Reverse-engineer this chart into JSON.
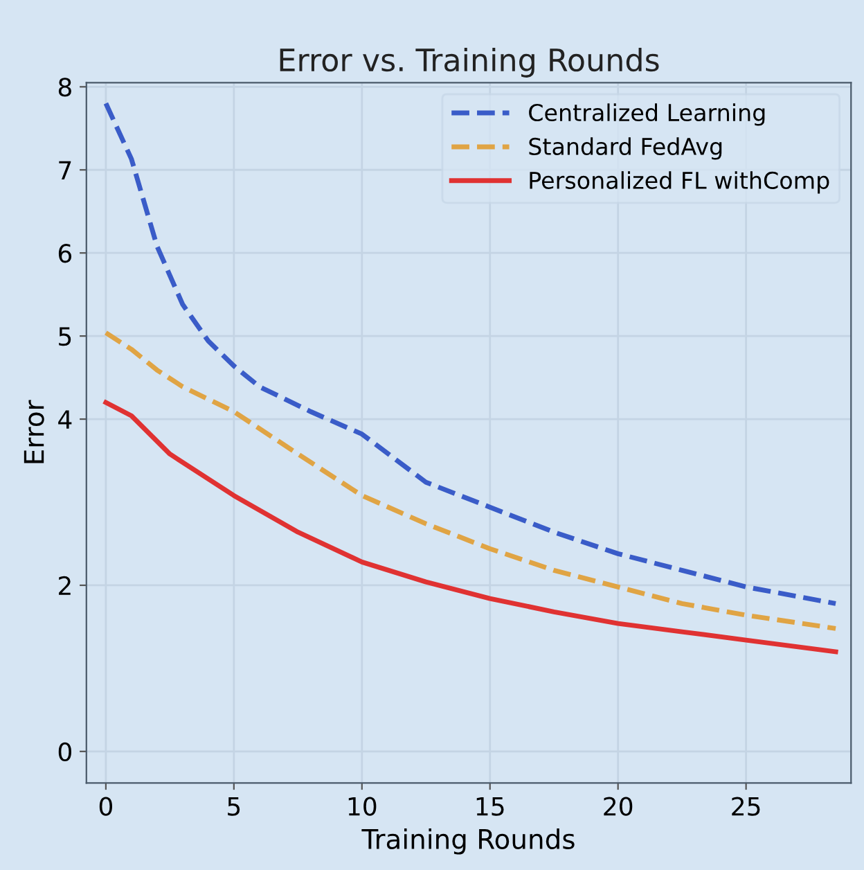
{
  "chart_data": {
    "type": "line",
    "title": "Error vs. Training Rounds",
    "xlabel": "Training Rounds",
    "ylabel": "Error",
    "xlim": [
      -0.76,
      29.1
    ],
    "xticks": [
      0,
      5,
      10,
      15,
      20,
      25
    ],
    "ylim": [
      -0.38,
      8.05
    ],
    "yticks": [
      0,
      2,
      4,
      5,
      6,
      7,
      8
    ],
    "grid": true,
    "legend": "top right",
    "series": [
      {
        "name": "Centralized Learning",
        "color": "#3a5cc8",
        "line_style": "dashed",
        "x": [
          0,
          1,
          2,
          3,
          4,
          5,
          6,
          8,
          10,
          12.5,
          15,
          17.5,
          20,
          22.5,
          25,
          28.5
        ],
        "values": [
          7.8,
          7.13,
          6.08,
          5.38,
          4.94,
          4.64,
          4.39,
          4.09,
          3.82,
          3.24,
          2.94,
          2.64,
          2.38,
          2.18,
          1.98,
          1.78
        ]
      },
      {
        "name": "Standard FedAvg",
        "color": "#e0a444",
        "line_style": "dashed",
        "x": [
          0,
          1,
          2,
          3,
          5,
          7.5,
          10,
          12.5,
          15,
          17.5,
          20,
          22.5,
          25,
          28.5
        ],
        "values": [
          5.04,
          4.84,
          4.59,
          4.39,
          4.09,
          3.58,
          3.08,
          2.74,
          2.44,
          2.18,
          1.98,
          1.78,
          1.64,
          1.48
        ]
      },
      {
        "name": "Personalized FL withComp",
        "color": "#e03232",
        "line_style": "solid",
        "x": [
          0,
          1,
          2.5,
          5,
          7.5,
          10,
          12.5,
          15,
          17.5,
          20,
          22.5,
          25,
          28.5
        ],
        "values": [
          4.2,
          4.04,
          3.58,
          3.08,
          2.64,
          2.28,
          2.04,
          1.84,
          1.68,
          1.54,
          1.44,
          1.34,
          1.2
        ]
      }
    ]
  }
}
